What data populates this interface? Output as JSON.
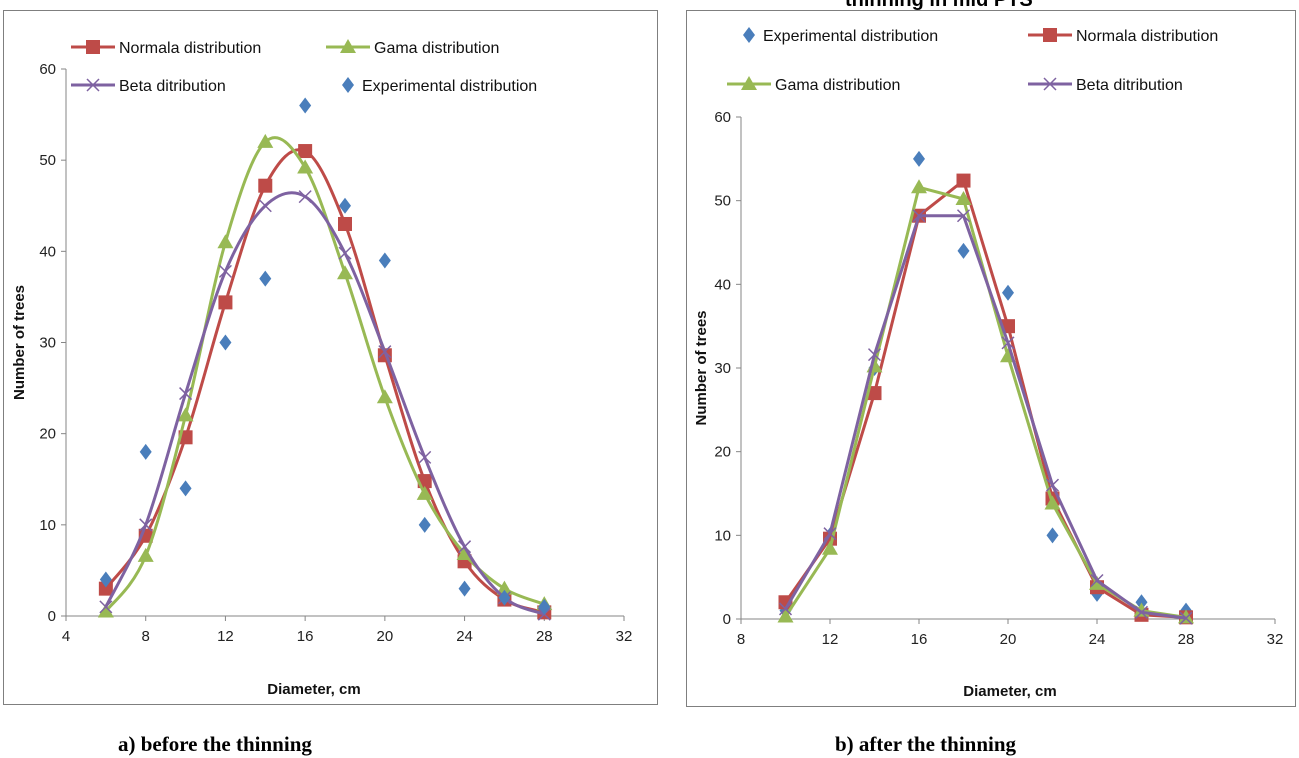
{
  "header": {
    "cut_title": "thinning in mid PTS"
  },
  "legend_labels": {
    "normal": "Normala distribution",
    "gamma": "Gama distribution",
    "beta": "Beta ditribution",
    "experimental": "Experimental distribution"
  },
  "colors": {
    "normal": "#be4b48",
    "gamma": "#98b954",
    "beta": "#7e62a1",
    "experimental": "#4a7ebb"
  },
  "chart_data": [
    {
      "type": "scatter",
      "caption": "a) before the thinning",
      "xlabel": "Diameter, cm",
      "ylabel": "Number of trees",
      "xlim": [
        4,
        32
      ],
      "ylim": [
        0,
        60
      ],
      "xticks": [
        4,
        8,
        12,
        16,
        20,
        24,
        28,
        32
      ],
      "yticks": [
        0,
        10,
        20,
        30,
        40,
        50,
        60
      ],
      "smooth": true,
      "legend_rows": [
        [
          "normal",
          "gamma"
        ],
        [
          "beta",
          "experimental"
        ]
      ],
      "series": [
        {
          "key": "normal",
          "marker": "square",
          "line": true,
          "x": [
            6,
            8,
            10,
            12,
            14,
            16,
            18,
            20,
            22,
            24,
            26,
            28
          ],
          "y": [
            3,
            8.8,
            19.6,
            34.4,
            47.2,
            51,
            43,
            28.6,
            14.8,
            6,
            1.8,
            0.4
          ]
        },
        {
          "key": "gamma",
          "marker": "triangle",
          "line": true,
          "x": [
            6,
            8,
            10,
            12,
            14,
            16,
            18,
            20,
            22,
            24,
            26,
            28
          ],
          "y": [
            0.5,
            6.6,
            22,
            41,
            52,
            49.2,
            37.6,
            24,
            13.4,
            6.8,
            3,
            1.3
          ]
        },
        {
          "key": "beta",
          "marker": "x",
          "line": true,
          "x": [
            6,
            8,
            10,
            12,
            14,
            16,
            18,
            20,
            22,
            24,
            26,
            28
          ],
          "y": [
            1,
            10,
            24.4,
            37.8,
            45,
            46,
            39.8,
            29,
            17.4,
            7.6,
            2,
            0.2
          ]
        },
        {
          "key": "experimental",
          "marker": "diamond",
          "line": false,
          "x": [
            6,
            8,
            10,
            12,
            14,
            16,
            18,
            20,
            22,
            24,
            26,
            28
          ],
          "y": [
            4,
            18,
            14,
            30,
            37,
            56,
            45,
            39,
            10,
            3,
            2,
            1
          ]
        }
      ]
    },
    {
      "type": "line",
      "caption": "b) after the thinning",
      "xlabel": "Diameter, cm",
      "ylabel": "Number of trees",
      "xlim": [
        8,
        32
      ],
      "ylim": [
        0,
        60
      ],
      "xticks": [
        8,
        12,
        16,
        20,
        24,
        28,
        32
      ],
      "yticks": [
        0,
        10,
        20,
        30,
        40,
        50,
        60
      ],
      "smooth": false,
      "legend_rows": [
        [
          "experimental",
          "normal"
        ],
        [
          "gamma",
          "beta"
        ]
      ],
      "series": [
        {
          "key": "experimental",
          "marker": "diamond",
          "line": false,
          "x": [
            10,
            12,
            14,
            16,
            18,
            20,
            22,
            24,
            26,
            28
          ],
          "y": [
            1,
            10,
            30,
            55,
            44,
            39,
            10,
            3,
            2,
            1
          ]
        },
        {
          "key": "normal",
          "marker": "square",
          "line": true,
          "x": [
            10,
            12,
            14,
            16,
            18,
            20,
            22,
            24,
            26,
            28
          ],
          "y": [
            2,
            9.6,
            27,
            48.2,
            52.4,
            35,
            14.4,
            3.8,
            0.5,
            0.2
          ]
        },
        {
          "key": "gamma",
          "marker": "triangle",
          "line": true,
          "x": [
            10,
            12,
            14,
            16,
            18,
            20,
            22,
            24,
            26,
            28
          ],
          "y": [
            0.3,
            8.4,
            30.2,
            51.6,
            50.2,
            31.4,
            13.8,
            4.2,
            1,
            0.2
          ]
        },
        {
          "key": "beta",
          "marker": "x",
          "line": true,
          "x": [
            10,
            12,
            14,
            16,
            18,
            20,
            22,
            24,
            26,
            28
          ],
          "y": [
            1.2,
            10.2,
            31.6,
            48.2,
            48.2,
            33,
            16,
            4.6,
            0.8,
            0.1
          ]
        }
      ]
    }
  ]
}
